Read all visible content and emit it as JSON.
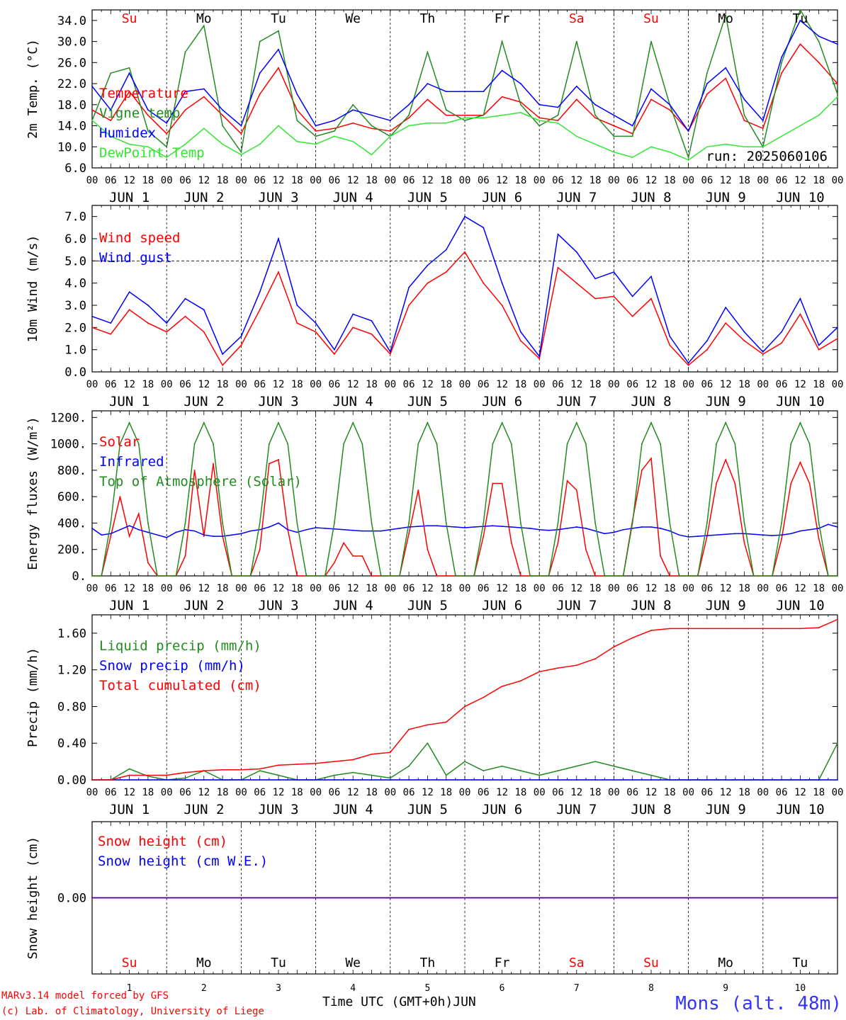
{
  "run_label": "run: 2025060106",
  "footer": {
    "model": "MARv3.14 model forced by GFS",
    "lab": "(c) Lab. of Climatology, University of Liege",
    "xlabel": "Time UTC (GMT+0h)",
    "month": "JUN",
    "station": "Mons (alt. 48m)"
  },
  "days": {
    "names": [
      "Su",
      "Mo",
      "Tu",
      "We",
      "Th",
      "Fr",
      "Sa",
      "Su",
      "Mo",
      "Tu"
    ],
    "name_colors": [
      "#ff0000",
      "#000000",
      "#000000",
      "#000000",
      "#000000",
      "#000000",
      "#ff0000",
      "#ff0000",
      "#000000",
      "#000000"
    ],
    "dates": [
      "JUN  1",
      "JUN  2",
      "JUN  3",
      "JUN  4",
      "JUN  5",
      "JUN  6",
      "JUN  7",
      "JUN  8",
      "JUN  9",
      "JUN 10"
    ],
    "numbers": [
      "1",
      "2",
      "3",
      "4",
      "5",
      "6",
      "7",
      "8",
      "9",
      "10"
    ],
    "hour_ticks": [
      "00",
      "06",
      "12",
      "18"
    ],
    "end_tick": "00"
  },
  "colors": {
    "red": "#ff0000",
    "green": "#228b22",
    "blue": "#0000ff",
    "lightgreen": "#32e632",
    "axis": "#000000"
  },
  "chart_data": [
    {
      "id": "temperature",
      "type": "line",
      "ylabel": "2m Temp. (°C)",
      "ylim": [
        6,
        36
      ],
      "yticks": [
        "6.0",
        "10.0",
        "14.0",
        "18.0",
        "22.0",
        "26.0",
        "30.0",
        "34.0"
      ],
      "show_day_names": true,
      "x_hours": [
        0,
        6,
        12,
        18,
        24,
        30,
        36,
        42,
        48,
        54,
        60,
        66,
        72,
        78,
        84,
        90,
        96,
        102,
        108,
        114,
        120,
        126,
        132,
        138,
        144,
        150,
        156,
        162,
        168,
        174,
        180,
        186,
        192,
        198,
        204,
        210,
        216,
        222,
        228,
        234,
        240
      ],
      "series": [
        {
          "name": "Temperature",
          "color": "#ff0000",
          "values": [
            17,
            15,
            20.5,
            16,
            12.5,
            17,
            19.5,
            16,
            12.5,
            20,
            25,
            17,
            13,
            13.5,
            14.5,
            13.5,
            13,
            15.5,
            19,
            16,
            16,
            16,
            19.5,
            18.5,
            15.5,
            15,
            19,
            15.5,
            14,
            12.5,
            19,
            17,
            13,
            20,
            23,
            15,
            13.5,
            24,
            29.5,
            26,
            22
          ]
        },
        {
          "name": "Vigne temp",
          "color": "#228b22",
          "values": [
            15,
            24,
            25,
            13,
            10,
            28,
            33,
            14,
            9,
            30,
            32,
            15,
            12,
            13,
            18,
            14,
            12,
            16,
            28,
            17,
            15,
            16,
            30,
            18,
            14,
            16,
            30,
            16,
            12,
            12,
            30,
            18,
            8,
            24,
            35,
            16,
            10,
            26,
            36,
            30,
            20
          ]
        },
        {
          "name": "Humidex",
          "color": "#0000ff",
          "values": [
            21.5,
            17,
            24,
            17,
            14.5,
            20.5,
            21,
            17,
            14,
            24,
            28.5,
            20,
            14,
            15,
            17,
            16,
            15,
            18,
            22,
            20.5,
            20.5,
            20.5,
            24.5,
            22,
            18,
            17.5,
            21.5,
            18,
            16,
            14,
            21,
            18,
            13,
            22,
            25,
            19,
            15,
            27,
            34,
            31,
            29.5
          ]
        },
        {
          "name": "DewPoint Temp",
          "color": "#32e632",
          "values": [
            15,
            12,
            10.5,
            10,
            8,
            10.5,
            13.5,
            10.5,
            8.5,
            10.5,
            14,
            11,
            10.5,
            12,
            11,
            8.5,
            12,
            14,
            14.5,
            14.5,
            15.5,
            15.5,
            16,
            16.5,
            15,
            14.5,
            12,
            10.5,
            9,
            8,
            10,
            9,
            7.5,
            10,
            10.5,
            10,
            10,
            12,
            14,
            16,
            19.5
          ]
        }
      ]
    },
    {
      "id": "wind",
      "type": "line",
      "ylabel": "10m Wind (m/s)",
      "ylim": [
        0,
        7.5
      ],
      "yticks": [
        "0.0",
        "1.0",
        "2.0",
        "3.0",
        "4.0",
        "5.0",
        "6.0",
        "7.0"
      ],
      "reference_line": 5,
      "x_hours": [
        0,
        6,
        12,
        18,
        24,
        30,
        36,
        42,
        48,
        54,
        60,
        66,
        72,
        78,
        84,
        90,
        96,
        102,
        108,
        114,
        120,
        126,
        132,
        138,
        144,
        150,
        156,
        162,
        168,
        174,
        180,
        186,
        192,
        198,
        204,
        210,
        216,
        222,
        228,
        234,
        240
      ],
      "series": [
        {
          "name": "Wind speed",
          "color": "#ff0000",
          "values": [
            2,
            1.7,
            2.8,
            2.2,
            1.8,
            2.5,
            1.8,
            0.3,
            1.2,
            2.8,
            4.5,
            2.2,
            1.8,
            0.8,
            2,
            1.7,
            0.8,
            3,
            4,
            4.5,
            5.4,
            4,
            3,
            1.4,
            0.6,
            4.7,
            4,
            3.3,
            3.4,
            2.5,
            3.3,
            1.2,
            0.3,
            1,
            2.2,
            1.4,
            0.8,
            1.3,
            2.6,
            1,
            1.5
          ]
        },
        {
          "name": "Wind gust",
          "color": "#0000ff",
          "values": [
            2.5,
            2.2,
            3.6,
            3,
            2.2,
            3.3,
            2.8,
            0.8,
            1.6,
            3.6,
            6,
            3,
            2.2,
            1,
            2.6,
            2.3,
            0.9,
            3.8,
            4.8,
            5.5,
            7,
            6.5,
            4,
            1.8,
            0.7,
            6.2,
            5.4,
            4.2,
            4.5,
            3.4,
            4.3,
            1.6,
            0.4,
            1.4,
            2.9,
            1.8,
            0.9,
            1.8,
            3.3,
            1.2,
            2
          ]
        }
      ]
    },
    {
      "id": "energy",
      "type": "line",
      "ylabel": "Energy fluxes (W/m²)",
      "ylim": [
        0,
        1250
      ],
      "yticks": [
        "0.",
        "200.",
        "400.",
        "600.",
        "800.",
        "1000.",
        "1200."
      ],
      "x_hours": [
        0,
        3,
        6,
        9,
        12,
        15,
        18,
        21,
        24,
        27,
        30,
        33,
        36,
        39,
        42,
        45,
        48,
        51,
        54,
        57,
        60,
        63,
        66,
        69,
        72,
        75,
        78,
        81,
        84,
        87,
        90,
        93,
        96,
        99,
        102,
        105,
        108,
        111,
        114,
        117,
        120,
        123,
        126,
        129,
        132,
        135,
        138,
        141,
        144,
        147,
        150,
        153,
        156,
        159,
        162,
        165,
        168,
        171,
        174,
        177,
        180,
        183,
        186,
        189,
        192,
        195,
        198,
        201,
        204,
        207,
        210,
        213,
        216,
        219,
        222,
        225,
        228,
        231,
        234,
        237,
        240
      ],
      "series": [
        {
          "name": "Solar",
          "color": "#ff0000",
          "values": [
            0,
            0,
            300,
            600,
            300,
            470,
            100,
            0,
            0,
            0,
            150,
            800,
            300,
            850,
            300,
            0,
            0,
            0,
            200,
            850,
            880,
            350,
            0,
            0,
            0,
            0,
            100,
            250,
            150,
            150,
            0,
            0,
            0,
            0,
            320,
            650,
            200,
            0,
            0,
            0,
            0,
            0,
            300,
            700,
            700,
            250,
            0,
            0,
            0,
            0,
            250,
            720,
            650,
            200,
            0,
            0,
            0,
            0,
            420,
            800,
            890,
            150,
            0,
            0,
            0,
            0,
            300,
            700,
            880,
            700,
            250,
            0,
            0,
            0,
            280,
            700,
            860,
            700,
            280,
            0,
            0
          ]
        },
        {
          "name": "Infrared",
          "color": "#0000ff",
          "values": [
            360,
            310,
            320,
            350,
            380,
            350,
            330,
            310,
            290,
            330,
            350,
            340,
            310,
            300,
            300,
            310,
            320,
            340,
            350,
            370,
            400,
            350,
            330,
            350,
            365,
            360,
            355,
            350,
            345,
            340,
            340,
            340,
            350,
            360,
            370,
            375,
            380,
            380,
            375,
            370,
            365,
            370,
            375,
            380,
            375,
            370,
            365,
            360,
            350,
            345,
            350,
            360,
            370,
            360,
            340,
            320,
            330,
            350,
            360,
            370,
            370,
            360,
            340,
            310,
            295,
            300,
            305,
            310,
            315,
            320,
            320,
            315,
            310,
            305,
            310,
            320,
            340,
            350,
            360,
            390,
            370
          ]
        },
        {
          "name": "Top of Atmosphere (Solar)",
          "color": "#228b22",
          "values": [
            0,
            0,
            400,
            1000,
            1160,
            1000,
            400,
            0,
            0,
            0,
            400,
            1000,
            1160,
            1000,
            400,
            0,
            0,
            0,
            400,
            1000,
            1160,
            1000,
            400,
            0,
            0,
            0,
            400,
            1000,
            1160,
            1000,
            400,
            0,
            0,
            0,
            400,
            1000,
            1160,
            1000,
            400,
            0,
            0,
            0,
            400,
            1000,
            1160,
            1000,
            400,
            0,
            0,
            0,
            400,
            1000,
            1160,
            1000,
            400,
            0,
            0,
            0,
            400,
            1000,
            1160,
            1000,
            400,
            0,
            0,
            0,
            400,
            1000,
            1160,
            1000,
            400,
            0,
            0,
            0,
            400,
            1000,
            1160,
            1000,
            400,
            0,
            0
          ]
        }
      ]
    },
    {
      "id": "precip",
      "type": "line",
      "ylabel": "Precip (mm/h)",
      "ylim": [
        0,
        1.8
      ],
      "yticks": [
        "0.00",
        "0.40",
        "0.80",
        "1.20",
        "1.60"
      ],
      "x_hours": [
        0,
        6,
        12,
        18,
        24,
        30,
        36,
        42,
        48,
        54,
        60,
        66,
        72,
        78,
        84,
        90,
        96,
        102,
        108,
        114,
        120,
        126,
        132,
        138,
        144,
        150,
        156,
        162,
        168,
        174,
        180,
        186,
        192,
        198,
        204,
        210,
        216,
        222,
        228,
        234,
        240
      ],
      "series": [
        {
          "name": "Liquid precip (mm/h)",
          "color": "#228b22",
          "values": [
            0,
            0,
            0.12,
            0.04,
            0,
            0.02,
            0.1,
            0,
            0,
            0.1,
            0.05,
            0,
            0,
            0.05,
            0.08,
            0.05,
            0.02,
            0.15,
            0.4,
            0.05,
            0.2,
            0.1,
            0.15,
            0.1,
            0.05,
            0.1,
            0.15,
            0.2,
            0.15,
            0.1,
            0.05,
            0,
            0,
            0,
            0,
            0,
            0,
            0,
            0,
            0,
            0.4
          ]
        },
        {
          "name": "Snow precip (mm/h)",
          "color": "#0000ff",
          "values": [
            0,
            0,
            0,
            0,
            0,
            0,
            0,
            0,
            0,
            0,
            0,
            0,
            0,
            0,
            0,
            0,
            0,
            0,
            0,
            0,
            0,
            0,
            0,
            0,
            0,
            0,
            0,
            0,
            0,
            0,
            0,
            0,
            0,
            0,
            0,
            0,
            0,
            0,
            0,
            0,
            0
          ]
        },
        {
          "name": "Total cumulated (cm)",
          "color": "#ff0000",
          "values": [
            0,
            0,
            0.05,
            0.05,
            0.05,
            0.08,
            0.1,
            0.11,
            0.11,
            0.12,
            0.16,
            0.17,
            0.18,
            0.2,
            0.22,
            0.28,
            0.3,
            0.55,
            0.6,
            0.63,
            0.8,
            0.9,
            1.02,
            1.08,
            1.18,
            1.22,
            1.25,
            1.32,
            1.45,
            1.55,
            1.63,
            1.65,
            1.65,
            1.65,
            1.65,
            1.65,
            1.65,
            1.65,
            1.65,
            1.66,
            1.75
          ]
        }
      ]
    },
    {
      "id": "snow",
      "type": "line",
      "ylabel": "Snow height (cm)",
      "ylim": [
        -1,
        1
      ],
      "yticks": [
        "0.00"
      ],
      "show_bottom_day_names": true,
      "x_hours": [
        0,
        240
      ],
      "series": [
        {
          "name": "Snow height (cm)",
          "color": "#ff0000",
          "values": [
            0,
            0
          ]
        },
        {
          "name": "Snow height (cm W.E.)",
          "color": "#0000ff",
          "values": [
            0,
            0
          ]
        }
      ]
    }
  ]
}
